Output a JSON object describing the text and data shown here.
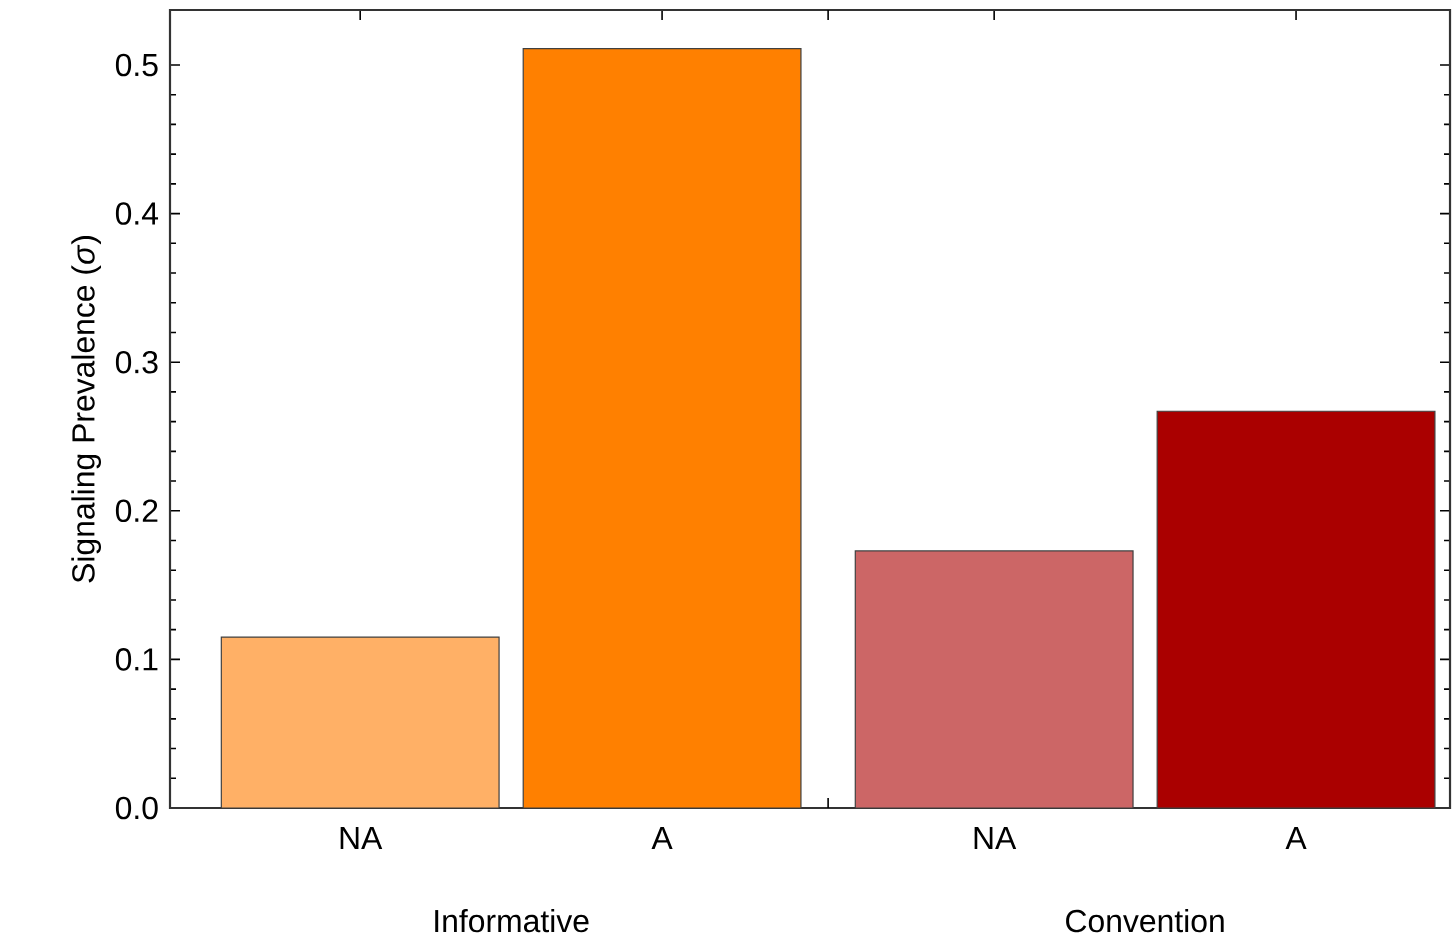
{
  "chart_data": {
    "type": "bar",
    "ylabel": "Signaling Prevalence (*σ*)",
    "categories": [
      "NA",
      "A",
      "NA",
      "A"
    ],
    "values": [
      0.115,
      0.511,
      0.173,
      0.267
    ],
    "colors": [
      "#ffb066",
      "#ff8000",
      "#cc6666",
      "#aa0000"
    ],
    "ylim": [
      0,
      0.537
    ],
    "yticks": [
      {
        "value": 0,
        "label": "0.0"
      },
      0.1,
      0.2,
      0.3,
      0.4,
      0.5
    ],
    "annotations": [
      "Informative",
      "Convention"
    ]
  }
}
